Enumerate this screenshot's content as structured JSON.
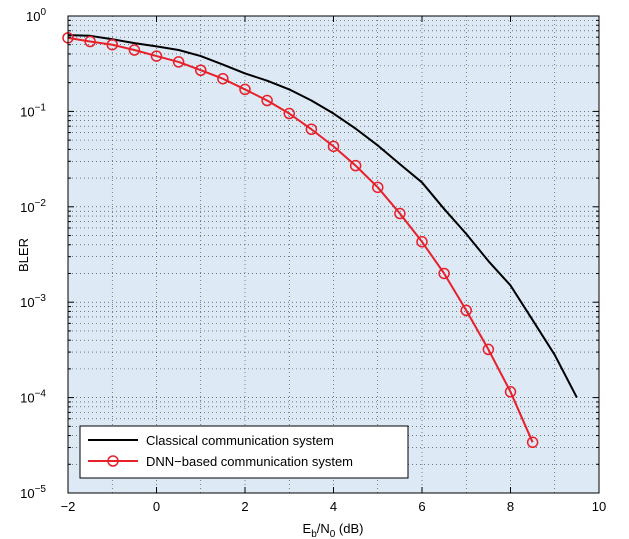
{
  "chart_data": {
    "type": "line",
    "xlabel": {
      "base": "E",
      "sub1": "b",
      "mid": "/N",
      "sub2": "0",
      "tail": " (dB)"
    },
    "ylabel": "BLER",
    "xlim": [
      -2,
      10
    ],
    "ylim": [
      1e-05,
      1
    ],
    "yscale": "log",
    "grid": true,
    "legend_position": "bottom-left",
    "background_color": "#dde9f5",
    "x_ticks": [
      {
        "value": -2,
        "label": "−2"
      },
      {
        "value": 0,
        "label": "0"
      },
      {
        "value": 2,
        "label": "2"
      },
      {
        "value": 4,
        "label": "4"
      },
      {
        "value": 6,
        "label": "6"
      },
      {
        "value": 8,
        "label": "8"
      },
      {
        "value": 10,
        "label": "10"
      }
    ],
    "y_ticks": [
      {
        "value": 1,
        "base": "10",
        "exp": "0"
      },
      {
        "value": 0.1,
        "base": "10",
        "exp": "−1"
      },
      {
        "value": 0.01,
        "base": "10",
        "exp": "−2"
      },
      {
        "value": 0.001,
        "base": "10",
        "exp": "−3"
      },
      {
        "value": 0.0001,
        "base": "10",
        "exp": "−4"
      },
      {
        "value": 1e-05,
        "base": "10",
        "exp": "−5"
      }
    ],
    "series": [
      {
        "name": "Classical communication system",
        "color": "#000000",
        "marker": "none",
        "x": [
          -2,
          -1.5,
          -1,
          -0.5,
          0,
          0.5,
          1,
          1.5,
          2,
          2.5,
          3,
          3.5,
          4,
          4.5,
          5,
          5.5,
          6,
          6.5,
          7,
          7.5,
          8,
          8.5,
          9,
          9.5
        ],
        "y": [
          0.63,
          0.62,
          0.57,
          0.52,
          0.48,
          0.44,
          0.38,
          0.31,
          0.25,
          0.21,
          0.17,
          0.13,
          0.095,
          0.066,
          0.044,
          0.028,
          0.018,
          0.0095,
          0.0052,
          0.0027,
          0.0015,
          0.00065,
          0.00028,
          0.0001
        ]
      },
      {
        "name": "DNN−based communication system",
        "color": "#e8202a",
        "marker": "circle",
        "x": [
          -2,
          -1.5,
          -1,
          -0.5,
          0,
          0.5,
          1,
          1.5,
          2,
          2.5,
          3,
          3.5,
          4,
          4.5,
          5,
          5.5,
          6,
          6.5,
          7,
          7.5,
          8,
          8.5
        ],
        "y": [
          0.59,
          0.54,
          0.5,
          0.44,
          0.38,
          0.33,
          0.27,
          0.22,
          0.17,
          0.13,
          0.095,
          0.065,
          0.043,
          0.027,
          0.016,
          0.0085,
          0.0043,
          0.002,
          0.00082,
          0.00032,
          0.000115,
          3.4e-05
        ]
      }
    ]
  }
}
